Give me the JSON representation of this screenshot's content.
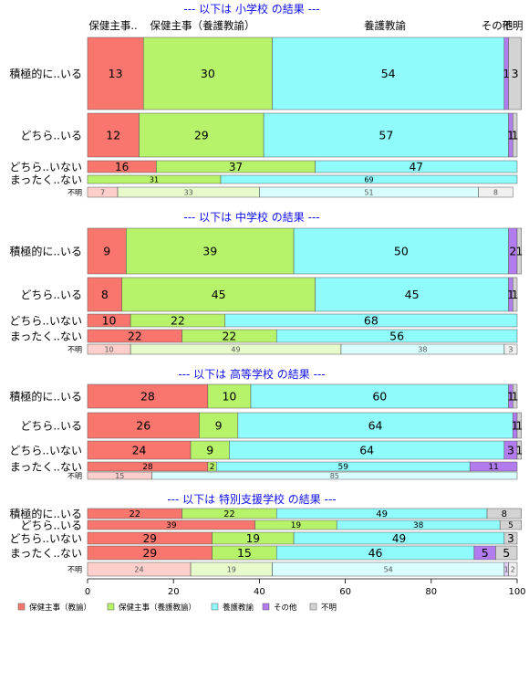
{
  "chart_data": {
    "type": "bar",
    "orientation": "horizontal",
    "stacked": "percent",
    "xlim": [
      0,
      100
    ],
    "x_ticks": [
      "0",
      "20",
      "40",
      "60",
      "80",
      "100"
    ],
    "grid": false,
    "legend_position": "bottom",
    "colors": {
      "nurse_teacher_general": "#F8766D",
      "nurse_teacher_yogo": "#B6F26A",
      "yogo_teacher": "#8FFBFB",
      "other": "#B37BF0",
      "unknown": "#D3D3D3"
    },
    "series": [
      {
        "key": "nurse_teacher_general",
        "name": "保健主事（教諭）"
      },
      {
        "key": "nurse_teacher_yogo",
        "name": "保健主事（養護教諭）"
      },
      {
        "key": "yogo_teacher",
        "name": "養護教諭"
      },
      {
        "key": "other",
        "name": "その他"
      },
      {
        "key": "unknown",
        "name": "不明"
      }
    ],
    "header_labels": [
      "保健主事..",
      "保健主事（養護教諭）",
      "養護教諭",
      "その他",
      "不明"
    ],
    "panels": [
      {
        "title": "--- 以下は 小学校 の結果 ---",
        "rows": [
          {
            "label": "積極的に..いる",
            "values": [
              13,
              30,
              54,
              1,
              3
            ]
          },
          {
            "label": "どちら..いる",
            "values": [
              12,
              29,
              57,
              1,
              1
            ]
          },
          {
            "label": "どちら..いない",
            "values": [
              16,
              37,
              47,
              0,
              0
            ]
          },
          {
            "label": "まったく..ない",
            "values": [
              0,
              31,
              69,
              0,
              0
            ]
          },
          {
            "label": "不明",
            "values": [
              7,
              33,
              51,
              0,
              8
            ],
            "faded": true
          }
        ]
      },
      {
        "title": "--- 以下は 中学校 の結果 ---",
        "rows": [
          {
            "label": "積極的に..いる",
            "values": [
              9,
              39,
              50,
              2,
              1
            ]
          },
          {
            "label": "どちら..いる",
            "values": [
              8,
              45,
              45,
              1,
              1
            ]
          },
          {
            "label": "どちら..いない",
            "values": [
              10,
              22,
              68,
              0,
              0
            ]
          },
          {
            "label": "まったく..ない",
            "values": [
              22,
              22,
              56,
              0,
              0
            ]
          },
          {
            "label": "不明",
            "values": [
              10,
              49,
              38,
              0,
              3
            ],
            "faded": true
          }
        ]
      },
      {
        "title": "--- 以下は 高等学校 の結果 ---",
        "rows": [
          {
            "label": "積極的に..いる",
            "values": [
              28,
              10,
              60,
              1,
              1
            ]
          },
          {
            "label": "どちら..いる",
            "values": [
              26,
              9,
              64,
              1,
              1
            ]
          },
          {
            "label": "どちら..いない",
            "values": [
              24,
              9,
              64,
              3,
              1
            ]
          },
          {
            "label": "まったく..ない",
            "values": [
              28,
              2,
              59,
              11,
              0
            ]
          },
          {
            "label": "不明",
            "values": [
              15,
              0,
              85,
              0,
              0
            ],
            "faded": true
          }
        ]
      },
      {
        "title": "--- 以下は 特別支援学校 の結果 ---",
        "rows": [
          {
            "label": "積極的に..いる",
            "values": [
              22,
              22,
              49,
              0,
              8
            ]
          },
          {
            "label": "どちら..いる",
            "values": [
              39,
              19,
              38,
              0,
              5
            ]
          },
          {
            "label": "どちら..いない",
            "values": [
              29,
              19,
              49,
              0,
              3
            ]
          },
          {
            "label": "まったく..ない",
            "values": [
              29,
              15,
              46,
              5,
              5
            ]
          },
          {
            "label": "不明",
            "values": [
              24,
              19,
              54,
              1,
              2
            ],
            "faded": true
          }
        ]
      }
    ]
  }
}
